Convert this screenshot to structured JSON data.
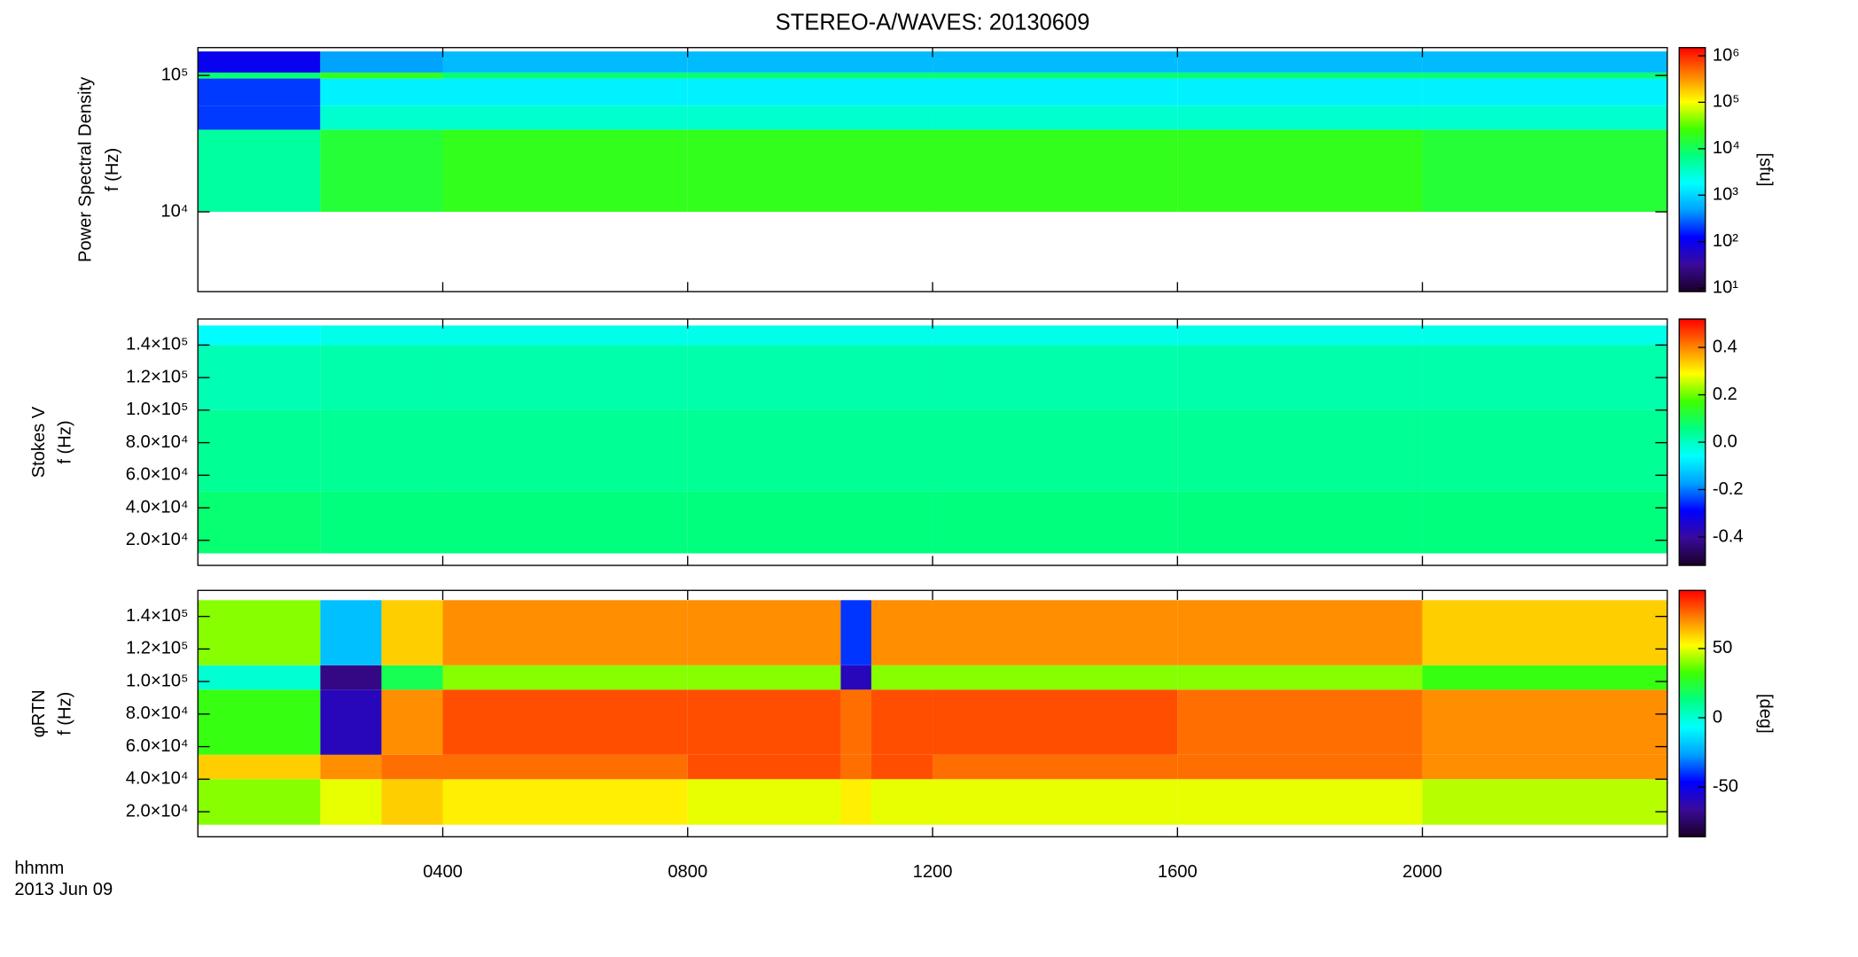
{
  "title": "STEREO-A/WAVES: 20130609",
  "x_label": [
    "hhmm",
    "2013 Jun 09"
  ],
  "colormap": [
    "#1a0026",
    "#3a0a9a",
    "#0000ff",
    "#00a0ff",
    "#00ffff",
    "#00ff80",
    "#40ff00",
    "#ffff00",
    "#ff8000",
    "#ff0000"
  ],
  "chart_data": [
    {
      "type": "heatmap",
      "ylabel": [
        "Power Spectral Density",
        "f (Hz)"
      ],
      "log_y": true,
      "ylim": [
        2600,
        160000
      ],
      "yticks": [
        {
          "value": 10000,
          "label": "10⁴"
        },
        {
          "value": 100000,
          "label": "10⁵"
        }
      ],
      "x": [
        0,
        2,
        4,
        8,
        12,
        16,
        20,
        24
      ],
      "y": [
        10000,
        40000,
        60000,
        95000,
        105000,
        150000
      ],
      "z": [
        [
          5000,
          15000,
          20000,
          20000,
          20000,
          20000,
          15000
        ],
        [
          200,
          3000,
          3000,
          3000,
          3000,
          3000,
          3000
        ],
        [
          200,
          1500,
          1500,
          1500,
          1500,
          1500,
          1500
        ],
        [
          8000,
          20000,
          8000,
          8000,
          8000,
          8000,
          8000
        ],
        [
          100,
          500,
          700,
          700,
          700,
          700,
          700
        ]
      ],
      "colorbar": {
        "label": "[sfu]",
        "log": true,
        "ylim": [
          8.4,
          1500000
        ],
        "ticks": [
          {
            "value": 10,
            "label": "10¹"
          },
          {
            "value": 100,
            "label": "10²"
          },
          {
            "value": 1000,
            "label": "10³"
          },
          {
            "value": 10000,
            "label": "10⁴"
          },
          {
            "value": 100000,
            "label": "10⁵"
          },
          {
            "value": 1000000,
            "label": "10⁶"
          }
        ]
      }
    },
    {
      "type": "heatmap",
      "ylabel": [
        "Stokes V",
        "f (Hz)"
      ],
      "log_y": false,
      "ylim": [
        4600,
        156000
      ],
      "yticks": [
        {
          "value": 20000,
          "label": "2.0×10⁴"
        },
        {
          "value": 40000,
          "label": "4.0×10⁴"
        },
        {
          "value": 60000,
          "label": "6.0×10⁴"
        },
        {
          "value": 80000,
          "label": "8.0×10⁴"
        },
        {
          "value": 100000,
          "label": "1.0×10⁵"
        },
        {
          "value": 120000,
          "label": "1.2×10⁵"
        },
        {
          "value": 140000,
          "label": "1.4×10⁵"
        }
      ],
      "x": [
        0,
        2,
        4,
        8,
        12,
        16,
        20,
        24
      ],
      "y": [
        12000,
        50000,
        100000,
        140000,
        152000
      ],
      "z": [
        [
          0.07,
          0.06,
          0.06,
          0.06,
          0.06,
          0.06,
          0.06
        ],
        [
          0.04,
          0.04,
          0.04,
          0.04,
          0.04,
          0.04,
          0.04
        ],
        [
          0.01,
          0.02,
          0.02,
          0.02,
          0.02,
          0.02,
          0.02
        ],
        [
          -0.06,
          -0.04,
          -0.04,
          -0.04,
          -0.04,
          -0.04,
          -0.04
        ]
      ],
      "colorbar": {
        "label": null,
        "log": false,
        "ylim": [
          -0.52,
          0.52
        ],
        "ticks": [
          -0.4,
          -0.2,
          {
            "value": 0,
            "label": "0.0"
          },
          0.2,
          0.4
        ]
      }
    },
    {
      "type": "heatmap",
      "ylabel": [
        "φRTN",
        "f (Hz)"
      ],
      "log_y": false,
      "ylim": [
        4600,
        156000
      ],
      "yticks": [
        {
          "value": 20000,
          "label": "2.0×10⁴"
        },
        {
          "value": 40000,
          "label": "4.0×10⁴"
        },
        {
          "value": 60000,
          "label": "6.0×10⁴"
        },
        {
          "value": 80000,
          "label": "8.0×10⁴"
        },
        {
          "value": 100000,
          "label": "1.0×10⁵"
        },
        {
          "value": 120000,
          "label": "1.2×10⁵"
        },
        {
          "value": 140000,
          "label": "1.4×10⁵"
        }
      ],
      "xlim": [
        0,
        24
      ],
      "xticks": [
        {
          "value": 4,
          "label": "0400"
        },
        {
          "value": 8,
          "label": "0800"
        },
        {
          "value": 12,
          "label": "1200"
        },
        {
          "value": 16,
          "label": "1600"
        },
        {
          "value": 20,
          "label": "2000"
        }
      ],
      "x": [
        0,
        2,
        3,
        4,
        8,
        10.5,
        11,
        12,
        16,
        20,
        24
      ],
      "y": [
        12000,
        40000,
        55000,
        95000,
        110000,
        150000
      ],
      "z": [
        [
          40,
          50,
          60,
          55,
          50,
          55,
          50,
          50,
          50,
          45
        ],
        [
          60,
          70,
          75,
          75,
          80,
          75,
          80,
          75,
          75,
          70
        ],
        [
          30,
          -60,
          70,
          80,
          80,
          75,
          80,
          80,
          75,
          70
        ],
        [
          0,
          -70,
          20,
          40,
          40,
          -60,
          40,
          40,
          40,
          30
        ],
        [
          40,
          -20,
          60,
          70,
          70,
          -40,
          70,
          70,
          70,
          60
        ]
      ],
      "colorbar": {
        "label": "[deg]",
        "log": false,
        "ylim": [
          -86,
          92
        ],
        "ticks": [
          -50,
          0,
          50
        ]
      }
    }
  ]
}
